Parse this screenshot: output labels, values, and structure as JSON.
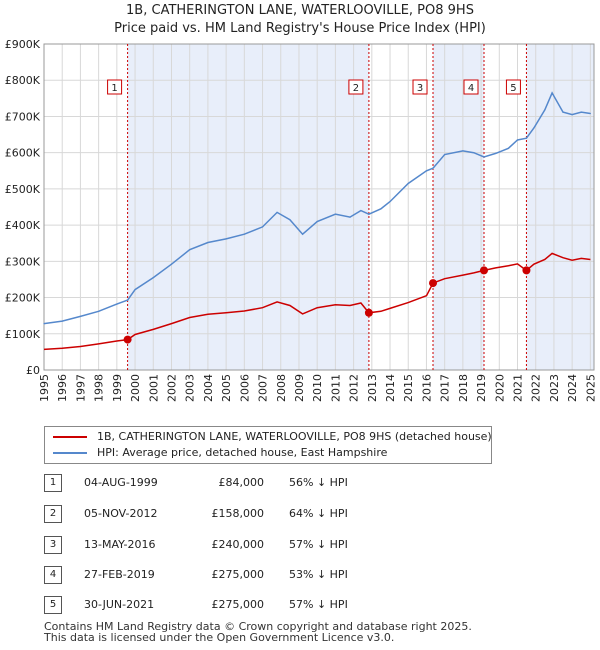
{
  "title_line1": "1B, CATHERINGTON LANE, WATERLOOVILLE, PO8 9HS",
  "title_line2": "Price paid vs. HM Land Registry's House Price Index (HPI)",
  "colors": {
    "price_paid": "#cc0000",
    "hpi": "#5588cc",
    "shade": "#e8eefa",
    "marker_line": "#cc0000"
  },
  "chart_data": {
    "type": "line",
    "title": "1B, CATHERINGTON LANE, WATERLOOVILLE, PO8 9HS — Price paid vs. HM Land Registry's House Price Index (HPI)",
    "xlabel": "",
    "ylabel": "",
    "xlim": [
      1995.0,
      2025.2
    ],
    "ylim": [
      0,
      900000
    ],
    "y_ticks": [
      {
        "value": 0,
        "label": "£0"
      },
      {
        "value": 100000,
        "label": "£100K"
      },
      {
        "value": 200000,
        "label": "£200K"
      },
      {
        "value": 300000,
        "label": "£300K"
      },
      {
        "value": 400000,
        "label": "£400K"
      },
      {
        "value": 500000,
        "label": "£500K"
      },
      {
        "value": 600000,
        "label": "£600K"
      },
      {
        "value": 700000,
        "label": "£700K"
      },
      {
        "value": 800000,
        "label": "£800K"
      },
      {
        "value": 900000,
        "label": "£900K"
      }
    ],
    "x_ticks": [
      "1995",
      "1996",
      "1997",
      "1998",
      "1999",
      "2000",
      "2001",
      "2002",
      "2003",
      "2004",
      "2005",
      "2006",
      "2007",
      "2008",
      "2009",
      "2010",
      "2011",
      "2012",
      "2013",
      "2014",
      "2015",
      "2016",
      "2017",
      "2018",
      "2019",
      "2020",
      "2021",
      "2022",
      "2023",
      "2024",
      "2025"
    ],
    "series": [
      {
        "name": "1B, CATHERINGTON LANE, WATERLOOVILLE, PO8 9HS (detached house)",
        "color": "#cc0000",
        "x": [
          1995.0,
          1996.0,
          1997.0,
          1998.0,
          1999.0,
          1999.59,
          2000.0,
          2001.0,
          2002.0,
          2003.0,
          2004.0,
          2005.0,
          2006.0,
          2007.0,
          2007.8,
          2008.5,
          2009.2,
          2010.0,
          2011.0,
          2011.8,
          2012.4,
          2012.84,
          2013.5,
          2014.0,
          2015.0,
          2016.0,
          2016.36,
          2017.0,
          2018.0,
          2018.6,
          2019.16,
          2019.8,
          2020.5,
          2021.0,
          2021.49,
          2021.9,
          2022.5,
          2022.9,
          2023.5,
          2024.0,
          2024.5,
          2025.0
        ],
        "y": [
          57000,
          60000,
          65000,
          72000,
          80000,
          84000,
          98000,
          112000,
          128000,
          145000,
          154000,
          158000,
          163000,
          172000,
          188000,
          178000,
          155000,
          172000,
          180000,
          178000,
          185000,
          158000,
          162000,
          170000,
          186000,
          205000,
          240000,
          252000,
          262000,
          268000,
          275000,
          282000,
          288000,
          293000,
          275000,
          292000,
          305000,
          322000,
          310000,
          303000,
          308000,
          305000
        ]
      },
      {
        "name": "HPI: Average price, detached house, East Hampshire",
        "color": "#5588cc",
        "x": [
          1995.0,
          1996.0,
          1997.0,
          1998.0,
          1999.0,
          1999.59,
          2000.0,
          2001.0,
          2002.0,
          2003.0,
          2004.0,
          2005.0,
          2006.0,
          2007.0,
          2007.8,
          2008.5,
          2009.2,
          2010.0,
          2011.0,
          2011.8,
          2012.4,
          2012.84,
          2013.5,
          2014.0,
          2015.0,
          2016.0,
          2016.36,
          2017.0,
          2018.0,
          2018.6,
          2019.16,
          2019.8,
          2020.5,
          2021.0,
          2021.49,
          2021.9,
          2022.5,
          2022.9,
          2023.5,
          2024.0,
          2024.5,
          2025.0
        ],
        "y": [
          128000,
          135000,
          148000,
          162000,
          182000,
          193000,
          222000,
          255000,
          292000,
          332000,
          352000,
          362000,
          375000,
          395000,
          435000,
          415000,
          375000,
          410000,
          430000,
          422000,
          440000,
          430000,
          445000,
          465000,
          515000,
          550000,
          557000,
          595000,
          605000,
          600000,
          588000,
          598000,
          612000,
          635000,
          640000,
          668000,
          718000,
          765000,
          712000,
          705000,
          712000,
          708000
        ]
      }
    ],
    "sale_points": [
      {
        "label": "1",
        "x": 1999.59,
        "y": 84000
      },
      {
        "label": "2",
        "x": 2012.84,
        "y": 158000
      },
      {
        "label": "3",
        "x": 2016.36,
        "y": 240000
      },
      {
        "label": "4",
        "x": 2019.16,
        "y": 275000
      },
      {
        "label": "5",
        "x": 2021.49,
        "y": 275000
      }
    ],
    "shaded_spans": [
      [
        1999.59,
        2012.84
      ],
      [
        2016.36,
        2019.16
      ],
      [
        2021.49,
        2025.2
      ]
    ]
  },
  "legend": {
    "property": "1B, CATHERINGTON LANE, WATERLOOVILLE, PO8 9HS (detached house)",
    "hpi": "HPI: Average price, detached house, East Hampshire"
  },
  "sales": [
    {
      "num": "1",
      "date": "04-AUG-1999",
      "price": "£84,000",
      "pct": "56% ↓ HPI"
    },
    {
      "num": "2",
      "date": "05-NOV-2012",
      "price": "£158,000",
      "pct": "64% ↓ HPI"
    },
    {
      "num": "3",
      "date": "13-MAY-2016",
      "price": "£240,000",
      "pct": "57% ↓ HPI"
    },
    {
      "num": "4",
      "date": "27-FEB-2019",
      "price": "£275,000",
      "pct": "53% ↓ HPI"
    },
    {
      "num": "5",
      "date": "30-JUN-2021",
      "price": "£275,000",
      "pct": "57% ↓ HPI"
    }
  ],
  "footer_line1": "Contains HM Land Registry data © Crown copyright and database right 2025.",
  "footer_line2": "This data is licensed under the Open Government Licence v3.0."
}
